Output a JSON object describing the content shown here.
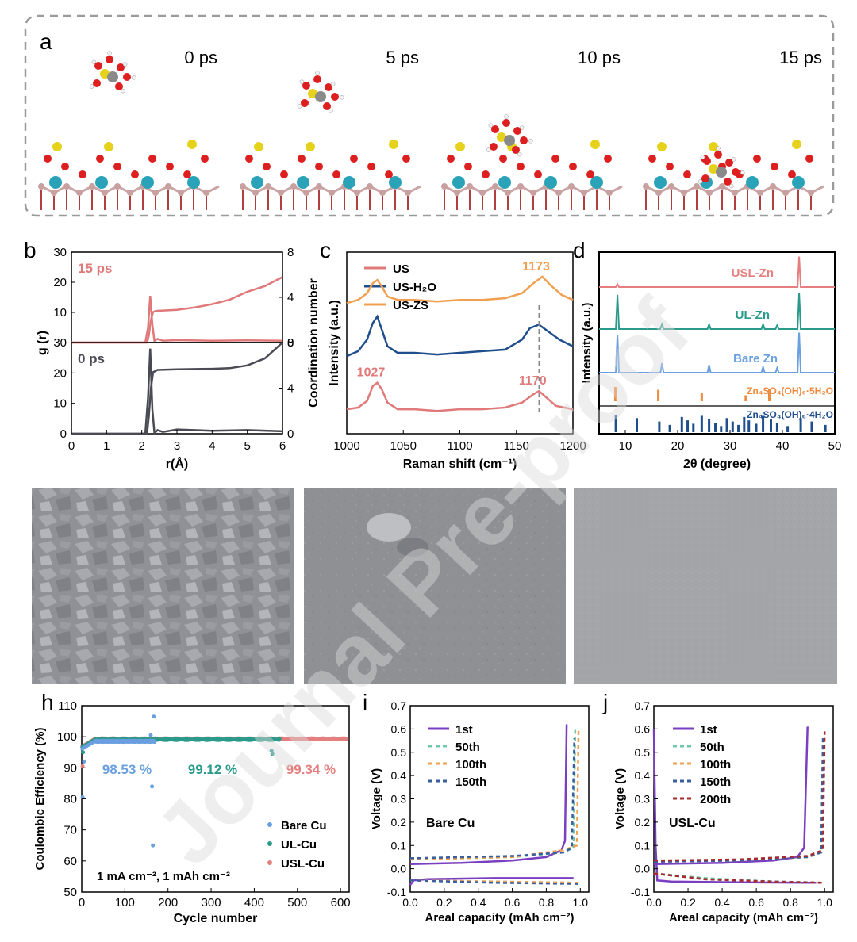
{
  "colors": {
    "us": "#e07a7a",
    "us_h2o": "#1f4e8c",
    "us_zs": "#f0a050",
    "usl": "#e57f7f",
    "ul": "#2a9a8a",
    "bare": "#6a9fe0",
    "ref1": "#f08a3c",
    "ref2": "#1f4e8c",
    "line_0ps": "#4a4a55",
    "line_15ps": "#e07a7a",
    "v1": "#7a3fc0",
    "v50": "#70c8a8",
    "v100": "#f0a050",
    "v150": "#3a5ea0",
    "v200": "#a82b2b",
    "axis": "#000000"
  },
  "panel_a": {
    "label": "a",
    "frames": [
      {
        "time": "0 ps",
        "ion": "near"
      },
      {
        "time": "5 ps",
        "ion": "mid"
      },
      {
        "time": "10 ps",
        "ion": "approach"
      },
      {
        "time": "15 ps",
        "ion": "adsorbed"
      }
    ]
  },
  "panel_sem": {
    "images": [
      "bare-zn-sem",
      "ul-zn-sem",
      "usl-zn-sem"
    ]
  },
  "watermark": "Journal Pre-proof",
  "chart_data": [
    {
      "id": "b",
      "label": "b",
      "type": "line",
      "xlabel": "r(Å)",
      "ylabel_left": "g (r)",
      "ylabel_right": "Coordination number",
      "xlim": [
        0,
        6
      ],
      "xticks": [
        "0",
        "1",
        "2",
        "3",
        "4",
        "5",
        "6"
      ],
      "subplots": [
        {
          "name": "15 ps",
          "ylim": [
            0,
            30
          ],
          "yticks_left": [
            "0",
            "10",
            "20",
            "30"
          ],
          "ylim_right": [
            0,
            8
          ],
          "yticks_right": [
            "0",
            "4",
            "8"
          ],
          "gr": {
            "x": [
              0,
              2.1,
              2.18,
              2.24,
              2.3,
              2.36,
              2.45,
              2.6,
              3,
              4,
              5,
              6
            ],
            "y": [
              0,
              0,
              5,
              15.5,
              6,
              0.5,
              1.2,
              0.6,
              0.8,
              0.6,
              0.7,
              0.6
            ]
          },
          "cn": {
            "x": [
              0,
              2.15,
              2.2,
              2.26,
              2.32,
              2.4,
              3,
              3.5,
              4,
              4.5,
              5,
              5.5,
              6
            ],
            "y": [
              0,
              0,
              0.6,
              2.0,
              2.7,
              2.8,
              2.9,
              3.1,
              3.4,
              3.8,
              4.5,
              5.0,
              5.8
            ]
          }
        },
        {
          "name": "0 ps",
          "ylim": [
            0,
            30
          ],
          "yticks_left": [
            "0",
            "10",
            "20",
            "30"
          ],
          "ylim_right": [
            0,
            8
          ],
          "yticks_right": [
            "0",
            "4",
            "8"
          ],
          "gr": {
            "x": [
              0,
              2.1,
              2.18,
              2.24,
              2.3,
              2.36,
              2.45,
              2.6,
              3,
              4,
              5,
              6
            ],
            "y": [
              0,
              0,
              12,
              28,
              8,
              0.2,
              1.2,
              0.6,
              1.4,
              1.0,
              1.2,
              0.8
            ]
          },
          "cn": {
            "x": [
              0,
              2.15,
              2.2,
              2.26,
              2.32,
              2.45,
              3,
              4,
              4.5,
              5,
              5.5,
              6
            ],
            "y": [
              0,
              0,
              1.5,
              4.0,
              5.4,
              5.6,
              5.65,
              5.7,
              5.75,
              6.0,
              6.6,
              8.0
            ]
          }
        }
      ]
    },
    {
      "id": "c",
      "label": "c",
      "type": "line",
      "xlabel": "Raman shift (cm⁻¹)",
      "ylabel": "Intensity (a.u.)",
      "xlim": [
        1000,
        1200
      ],
      "xticks": [
        "1000",
        "1050",
        "1100",
        "1150",
        "1200"
      ],
      "marker_x": 1170,
      "series": [
        {
          "name": "US",
          "offset": 0.0,
          "x": [
            1000,
            1010,
            1018,
            1023,
            1027,
            1031,
            1036,
            1045,
            1060,
            1080,
            1100,
            1120,
            1140,
            1155,
            1165,
            1170,
            1175,
            1185,
            1200
          ],
          "y": [
            0.1,
            0.11,
            0.15,
            0.24,
            0.26,
            0.22,
            0.14,
            0.1,
            0.1,
            0.09,
            0.1,
            0.1,
            0.11,
            0.14,
            0.19,
            0.21,
            0.18,
            0.12,
            0.1
          ],
          "peak_labels": [
            {
              "x": 1027,
              "text": "1027"
            },
            {
              "x": 1170,
              "text": "1170"
            }
          ]
        },
        {
          "name": "US-H₂O",
          "offset": 0.0,
          "x": [
            1000,
            1010,
            1018,
            1023,
            1027,
            1031,
            1036,
            1045,
            1060,
            1080,
            1100,
            1120,
            1140,
            1155,
            1162,
            1170,
            1178,
            1188,
            1200
          ],
          "y": [
            0.42,
            0.45,
            0.52,
            0.62,
            0.66,
            0.58,
            0.48,
            0.44,
            0.44,
            0.43,
            0.44,
            0.45,
            0.46,
            0.52,
            0.59,
            0.61,
            0.57,
            0.52,
            0.48
          ]
        },
        {
          "name": "US-ZS",
          "offset": 0.0,
          "x": [
            1000,
            1010,
            1018,
            1023,
            1027,
            1031,
            1036,
            1045,
            1060,
            1080,
            1100,
            1120,
            1140,
            1155,
            1165,
            1173,
            1180,
            1190,
            1200
          ],
          "y": [
            0.74,
            0.76,
            0.8,
            0.86,
            0.88,
            0.84,
            0.78,
            0.76,
            0.76,
            0.75,
            0.76,
            0.76,
            0.77,
            0.8,
            0.86,
            0.9,
            0.85,
            0.79,
            0.76
          ],
          "peak_labels": [
            {
              "x": 1173,
              "text": "1173"
            }
          ]
        }
      ]
    },
    {
      "id": "d",
      "label": "d",
      "type": "line",
      "xlabel": "2θ (degree)",
      "ylabel": "Intensity (a.u.)",
      "xlim": [
        5,
        50
      ],
      "xticks": [
        "10",
        "20",
        "30",
        "40",
        "50"
      ],
      "series": [
        {
          "name": "USL-Zn",
          "peaks": [
            [
              8.5,
              0.03
            ],
            [
              43.2,
              0.32
            ]
          ]
        },
        {
          "name": "UL-Zn",
          "peaks": [
            [
              8.5,
              0.36
            ],
            [
              17,
              0.05
            ],
            [
              26,
              0.05
            ],
            [
              36.3,
              0.05
            ],
            [
              39,
              0.04
            ],
            [
              43.2,
              0.38
            ]
          ]
        },
        {
          "name": "Bare Zn",
          "peaks": [
            [
              8.5,
              0.4
            ],
            [
              17,
              0.1
            ],
            [
              26,
              0.08
            ],
            [
              36.3,
              0.06
            ],
            [
              39,
              0.05
            ],
            [
              43.2,
              0.42
            ]
          ]
        }
      ],
      "references": [
        {
          "name": "Zn₄SO₄(OH)₆·5H₂O",
          "x": [
            8.1,
            16.3,
            24.6,
            33.0,
            37.5
          ]
        },
        {
          "name": "Zn₄SO₄(OH)₆·4H₂O",
          "x": [
            8.2,
            12.2,
            16.5,
            18.5,
            20.8,
            21.9,
            23.0,
            24.6,
            26.0,
            27.2,
            28.3,
            29.4,
            30.5,
            31.6,
            32.7,
            33.6,
            35.0,
            36.3,
            37.8,
            39.0,
            41.0,
            43.5,
            45.6,
            48.2
          ]
        }
      ]
    },
    {
      "id": "h",
      "label": "h",
      "type": "scatter",
      "xlabel": "Cycle number",
      "ylabel": "Coulombic Efficiency (%)",
      "xlim": [
        0,
        620
      ],
      "xticks": [
        "0",
        "100",
        "200",
        "300",
        "400",
        "500",
        "600"
      ],
      "ylim": [
        50,
        110
      ],
      "yticks": [
        "50",
        "60",
        "70",
        "80",
        "90",
        "100",
        "110"
      ],
      "condition": "1 mA cm⁻², 1 mAh cm⁻²",
      "series": [
        {
          "name": "Bare Cu",
          "avg": "98.53 %",
          "n": 170,
          "outliers": [
            [
              2,
              80.5
            ],
            [
              5,
              92
            ],
            [
              160,
              100.5
            ],
            [
              163,
              84
            ],
            [
              167,
              106.5
            ],
            [
              165,
              65
            ]
          ]
        },
        {
          "name": "UL-Cu",
          "avg": "99.12 %",
          "n": 460,
          "outliers": [
            [
              3,
              95
            ],
            [
              440,
              95.5
            ],
            [
              442,
              94.5
            ]
          ]
        },
        {
          "name": "USL-Cu",
          "avg": "99.34 %",
          "n": 615,
          "outliers": [
            [
              2,
              90.5
            ]
          ]
        }
      ]
    },
    {
      "id": "i",
      "label": "i",
      "type": "line",
      "title": "Bare Cu",
      "xlabel": "Areal capacity (mAh cm⁻²)",
      "ylabel": "Voltage (V)",
      "xlim": [
        0,
        1.05
      ],
      "xticks": [
        "0.0",
        "0.2",
        "0.4",
        "0.6",
        "0.8",
        "1.0"
      ],
      "ylim": [
        -0.1,
        0.7
      ],
      "yticks": [
        "-0.1",
        "0.0",
        "0.1",
        "0.2",
        "0.3",
        "0.4",
        "0.5",
        "0.6",
        "0.7"
      ],
      "series": [
        {
          "name": "1st",
          "discharge": [
            [
              0,
              -0.07
            ],
            [
              0.02,
              -0.05
            ],
            [
              0.1,
              -0.045
            ],
            [
              0.5,
              -0.04
            ],
            [
              0.96,
              -0.04
            ]
          ],
          "charge": [
            [
              0,
              0.02
            ],
            [
              0.3,
              0.025
            ],
            [
              0.6,
              0.035
            ],
            [
              0.8,
              0.05
            ],
            [
              0.89,
              0.08
            ],
            [
              0.91,
              0.12
            ],
            [
              0.92,
              0.62
            ]
          ]
        },
        {
          "name": "50th",
          "discharge": [
            [
              0,
              -0.05
            ],
            [
              0.5,
              -0.055
            ],
            [
              1.0,
              -0.06
            ]
          ],
          "charge": [
            [
              0,
              0.04
            ],
            [
              0.6,
              0.05
            ],
            [
              0.9,
              0.07
            ],
            [
              0.96,
              0.09
            ],
            [
              0.97,
              0.6
            ]
          ]
        },
        {
          "name": "100th",
          "discharge": [
            [
              0,
              -0.05
            ],
            [
              0.5,
              -0.055
            ],
            [
              1.0,
              -0.06
            ]
          ],
          "charge": [
            [
              0,
              0.04
            ],
            [
              0.6,
              0.05
            ],
            [
              0.9,
              0.08
            ],
            [
              0.98,
              0.1
            ],
            [
              0.99,
              0.6
            ]
          ]
        },
        {
          "name": "150th",
          "discharge": [
            [
              0,
              -0.05
            ],
            [
              0.5,
              -0.06
            ],
            [
              1.0,
              -0.065
            ]
          ],
          "charge": [
            [
              0,
              0.045
            ],
            [
              0.6,
              0.055
            ],
            [
              0.9,
              0.07
            ],
            [
              0.95,
              0.09
            ],
            [
              0.965,
              0.56
            ]
          ]
        }
      ]
    },
    {
      "id": "j",
      "label": "j",
      "type": "line",
      "title": "USL-Cu",
      "xlabel": "Areal capacity (mAh cm⁻²)",
      "ylabel": "Voltage (V)",
      "xlim": [
        0,
        1.05
      ],
      "xticks": [
        "0.0",
        "0.2",
        "0.4",
        "0.6",
        "0.8",
        "1.0"
      ],
      "ylim": [
        -0.1,
        0.7
      ],
      "yticks": [
        "-0.1",
        "0.0",
        "0.1",
        "0.2",
        "0.3",
        "0.4",
        "0.5",
        "0.6",
        "0.7"
      ],
      "series": [
        {
          "name": "1st",
          "discharge": [
            [
              0,
              0.6
            ],
            [
              0.01,
              0.1
            ],
            [
              0.02,
              -0.05
            ],
            [
              0.1,
              -0.055
            ],
            [
              0.5,
              -0.058
            ],
            [
              0.95,
              -0.06
            ]
          ],
          "charge": [
            [
              0,
              0.02
            ],
            [
              0.4,
              0.025
            ],
            [
              0.7,
              0.035
            ],
            [
              0.84,
              0.05
            ],
            [
              0.88,
              0.09
            ],
            [
              0.9,
              0.61
            ]
          ]
        },
        {
          "name": "50th",
          "discharge": [
            [
              0,
              -0.02
            ],
            [
              0.3,
              -0.04
            ],
            [
              0.7,
              -0.055
            ],
            [
              1.0,
              -0.06
            ]
          ],
          "charge": [
            [
              0,
              0.03
            ],
            [
              0.5,
              0.035
            ],
            [
              0.9,
              0.05
            ],
            [
              0.98,
              0.07
            ],
            [
              0.99,
              0.56
            ]
          ]
        },
        {
          "name": "100th",
          "discharge": [
            [
              0,
              -0.02
            ],
            [
              0.3,
              -0.045
            ],
            [
              0.7,
              -0.055
            ],
            [
              1.0,
              -0.06
            ]
          ],
          "charge": [
            [
              0,
              0.03
            ],
            [
              0.5,
              0.035
            ],
            [
              0.9,
              0.05
            ],
            [
              0.98,
              0.07
            ],
            [
              0.99,
              0.56
            ]
          ]
        },
        {
          "name": "150th",
          "discharge": [
            [
              0,
              -0.02
            ],
            [
              0.3,
              -0.045
            ],
            [
              0.7,
              -0.055
            ],
            [
              1.0,
              -0.06
            ]
          ],
          "charge": [
            [
              0,
              0.03
            ],
            [
              0.5,
              0.035
            ],
            [
              0.9,
              0.05
            ],
            [
              0.98,
              0.07
            ],
            [
              0.99,
              0.56
            ]
          ]
        },
        {
          "name": "200th",
          "discharge": [
            [
              0,
              -0.02
            ],
            [
              0.3,
              -0.045
            ],
            [
              0.7,
              -0.056
            ],
            [
              1.0,
              -0.06
            ]
          ],
          "charge": [
            [
              0,
              0.035
            ],
            [
              0.5,
              0.04
            ],
            [
              0.9,
              0.055
            ],
            [
              0.99,
              0.08
            ],
            [
              1.0,
              0.59
            ]
          ]
        }
      ]
    }
  ]
}
